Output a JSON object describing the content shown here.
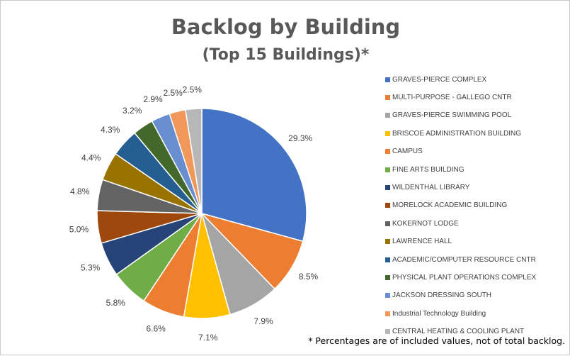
{
  "chart_data": {
    "type": "pie",
    "title": "Backlog by Building",
    "subtitle": "(Top 15 Buildings)*",
    "footnote": "* Percentages are of included values, not of total backlog.",
    "legend_position": "right",
    "slices": [
      {
        "name": "GRAVES-PIERCE COMPLEX",
        "value": 29.3,
        "label": "29.3%",
        "color": "#4472C4"
      },
      {
        "name": "MULTI-PURPOSE - GALLEGO CNTR",
        "value": 8.5,
        "label": "8.5%",
        "color": "#ED7D31"
      },
      {
        "name": "GRAVES-PIERCE SWIMMING POOL",
        "value": 7.9,
        "label": "7.9%",
        "color": "#A5A5A5"
      },
      {
        "name": "BRISCOE ADMINISTRATION BUILDING",
        "value": 7.1,
        "label": "7.1%",
        "color": "#FFC000"
      },
      {
        "name": "CAMPUS",
        "value": 6.6,
        "label": "6.6%",
        "color": "#ED7D31"
      },
      {
        "name": "FINE ARTS BUILDING",
        "value": 5.8,
        "label": "5.8%",
        "color": "#70AD47"
      },
      {
        "name": "WILDENTHAL LIBRARY",
        "value": 5.3,
        "label": "5.3%",
        "color": "#264478"
      },
      {
        "name": "MORELOCK ACADEMIC BUILDING",
        "value": 5.0,
        "label": "5.0%",
        "color": "#9E480E"
      },
      {
        "name": "KOKERNOT LODGE",
        "value": 4.8,
        "label": "4.8%",
        "color": "#636363"
      },
      {
        "name": "LAWRENCE HALL",
        "value": 4.4,
        "label": "4.4%",
        "color": "#997300"
      },
      {
        "name": "ACADEMIC/COMPUTER RESOURCE CNTR",
        "value": 4.3,
        "label": "4.3%",
        "color": "#255E91"
      },
      {
        "name": "PHYSICAL PLANT OPERATIONS COMPLEX",
        "value": 3.2,
        "label": "3.2%",
        "color": "#43682B"
      },
      {
        "name": "JACKSON DRESSING SOUTH",
        "value": 2.9,
        "label": "2.9%",
        "color": "#698ED0"
      },
      {
        "name": "Industrial Technology Building",
        "value": 2.5,
        "label": "2.5%",
        "color": "#F1975A"
      },
      {
        "name": "CENTRAL HEATING & COOLING PLANT",
        "value": 2.5,
        "label": "2.5%",
        "color": "#B7B7B7"
      }
    ]
  }
}
